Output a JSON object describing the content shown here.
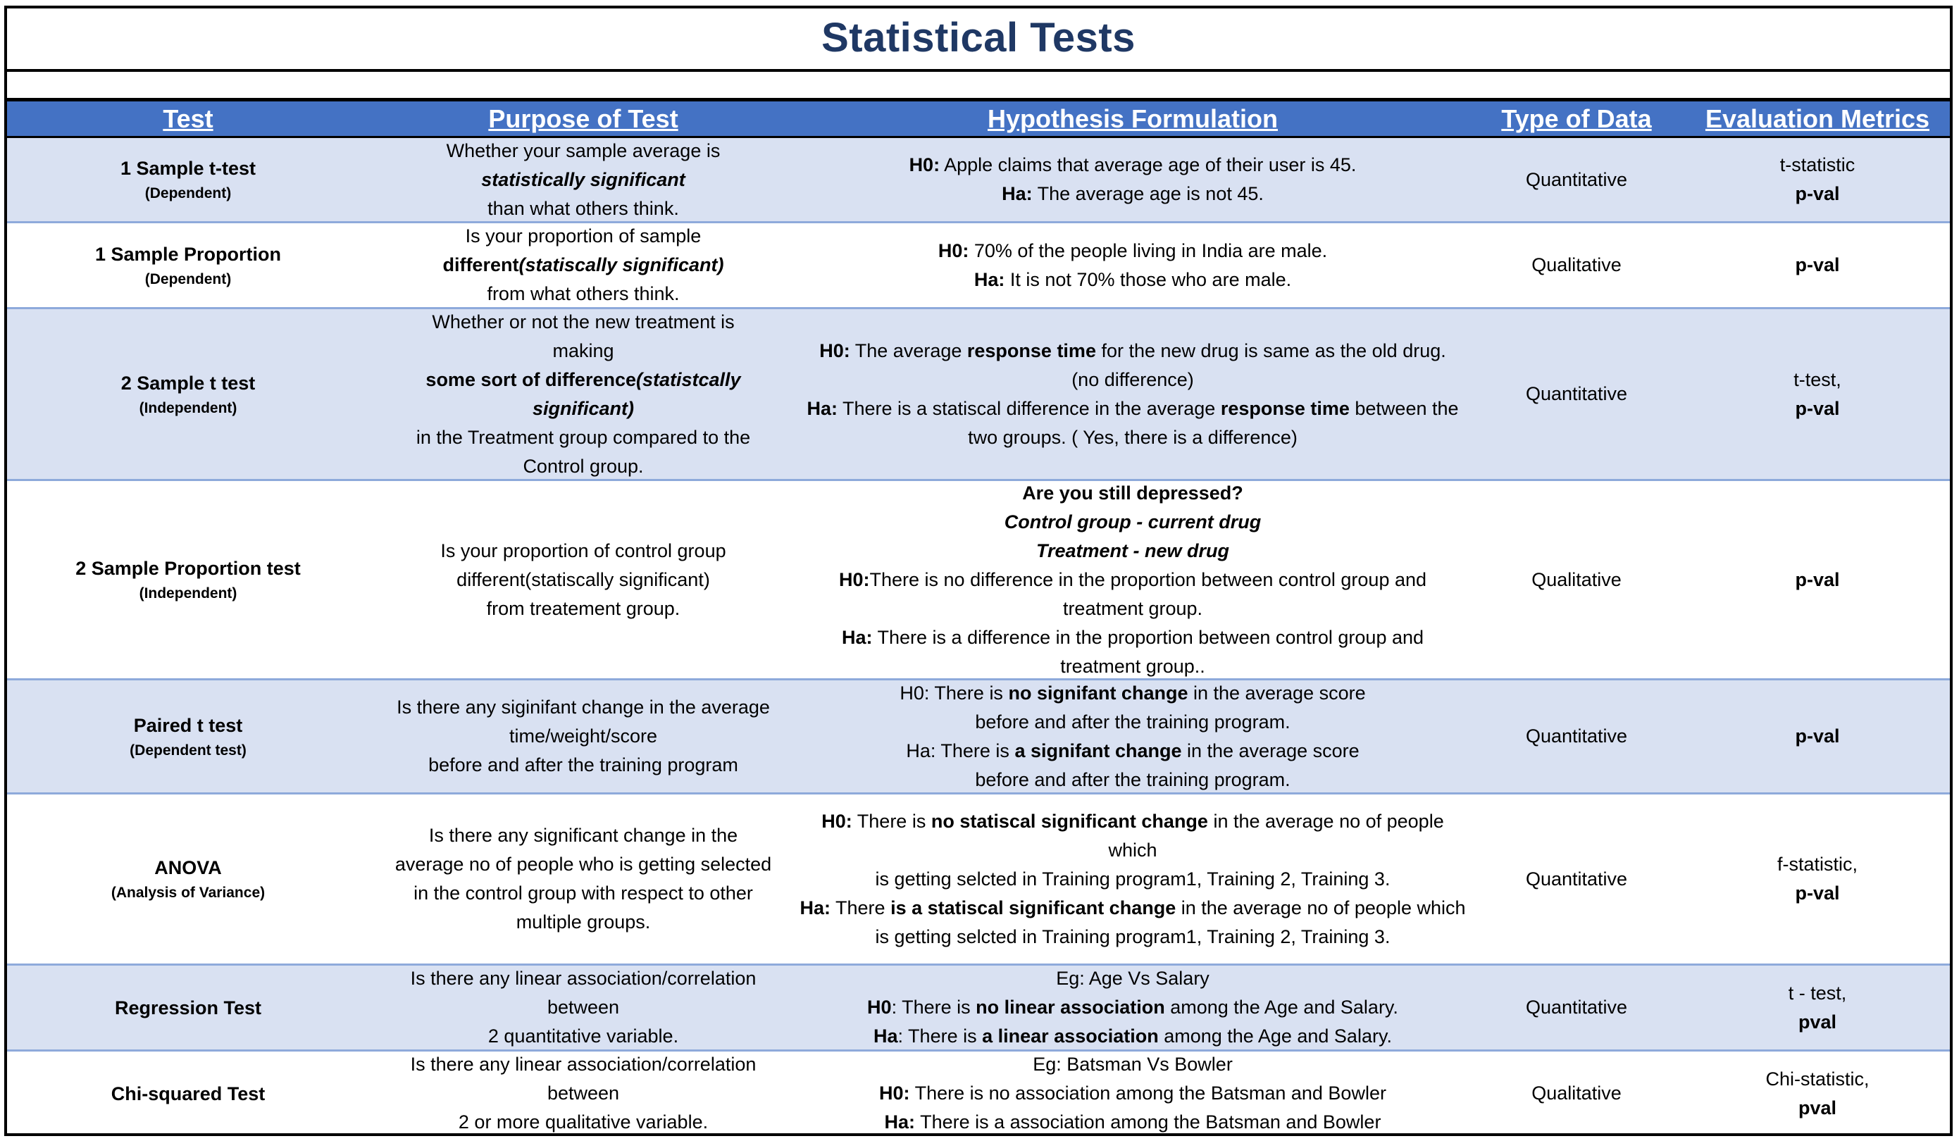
{
  "title": "Statistical Tests",
  "headers": {
    "test": "Test",
    "purpose": "Purpose of Test",
    "hypothesis": "Hypothesis Formulation",
    "type": "Type of Data",
    "metrics": "Evaluation Metrics"
  },
  "rows": [
    {
      "name": "1 Sample t-test",
      "sub": "(Dependent)",
      "purpose": [
        [
          {
            "t": "Whether your sample average is"
          }
        ],
        [
          {
            "t": "statistically significant",
            "s": "bi"
          }
        ],
        [
          {
            "t": "than what others think."
          }
        ]
      ],
      "hypothesis": [
        [
          {
            "t": "H0:",
            "s": "b"
          },
          {
            "t": " Apple claims that average age of their user is 45."
          }
        ],
        [
          {
            "t": "Ha:",
            "s": "b"
          },
          {
            "t": "  The average age is not 45."
          }
        ]
      ],
      "type": "Quantitative",
      "metrics": [
        [
          {
            "t": "t-statistic"
          }
        ],
        [
          {
            "t": "p-val",
            "s": "b"
          }
        ]
      ]
    },
    {
      "name": "1 Sample Proportion",
      "sub": "(Dependent)",
      "purpose": [
        [
          {
            "t": "Is your proportion of sample"
          }
        ],
        [
          {
            "t": "different",
            "s": "b"
          },
          {
            "t": "(statiscally significant)",
            "s": "bi"
          }
        ],
        [
          {
            "t": "from what others think."
          }
        ]
      ],
      "hypothesis": [
        [
          {
            "t": "H0:",
            "s": "b"
          },
          {
            "t": " 70% of the people living in India are male."
          }
        ],
        [
          {
            "t": "Ha:",
            "s": "b"
          },
          {
            "t": "  It is not 70% those who are male."
          }
        ]
      ],
      "type": "Qualitative",
      "metrics": [
        [
          {
            "t": "p-val",
            "s": "b"
          }
        ]
      ]
    },
    {
      "name": "2 Sample t test",
      "sub": "(Independent)",
      "purpose": [
        [
          {
            "t": "Whether or not the new treatment is"
          }
        ],
        [
          {
            "t": "making"
          }
        ],
        [
          {
            "t": "some sort of difference",
            "s": "b"
          },
          {
            "t": "(statistcally",
            "s": "bi"
          }
        ],
        [
          {
            "t": "significant)",
            "s": "bi"
          }
        ],
        [
          {
            "t": "in the Treatment group compared to the"
          }
        ],
        [
          {
            "t": "Control group."
          }
        ]
      ],
      "hypothesis": [
        [
          {
            "t": "H0:",
            "s": "b"
          },
          {
            "t": " The average "
          },
          {
            "t": "response time",
            "s": "b"
          },
          {
            "t": " for the new drug is same as the old drug."
          }
        ],
        [
          {
            "t": "(no difference)"
          }
        ],
        [
          {
            "t": "Ha:",
            "s": "b"
          },
          {
            "t": " There is a statiscal difference in the average "
          },
          {
            "t": "response time",
            "s": "b"
          },
          {
            "t": " between the"
          }
        ],
        [
          {
            "t": "two groups. ( Yes, there is a difference)"
          }
        ]
      ],
      "type": "Quantitative",
      "metrics": [
        [
          {
            "t": "t-test,"
          }
        ],
        [
          {
            "t": "p-val",
            "s": "b"
          }
        ]
      ]
    },
    {
      "name": "2 Sample Proportion test",
      "sub": "(Independent)",
      "purpose": [
        [
          {
            "t": "Is your proportion of control group"
          }
        ],
        [
          {
            "t": "different(statiscally significant)"
          }
        ],
        [
          {
            "t": "from treatement group."
          }
        ]
      ],
      "hypothesis": [
        [
          {
            "t": "Are you still depressed?",
            "s": "b"
          }
        ],
        [
          {
            "t": "Control group - current drug",
            "s": "bi"
          }
        ],
        [
          {
            "t": "Treatment - new drug",
            "s": "bi"
          }
        ],
        [
          {
            "t": "H0:",
            "s": "b"
          },
          {
            "t": "There is no difference in the proportion between control group and"
          }
        ],
        [
          {
            "t": "treatment group."
          }
        ],
        [
          {
            "t": "Ha:",
            "s": "b"
          },
          {
            "t": " There is a difference in the proportion between control group and"
          }
        ],
        [
          {
            "t": "treatment group.."
          }
        ]
      ],
      "type": "Qualitative",
      "metrics": [
        [
          {
            "t": "p-val",
            "s": "b"
          }
        ]
      ]
    },
    {
      "name": "Paired t test",
      "sub": "(Dependent test)",
      "purpose": [
        [
          {
            "t": "Is there any siginifant change in the average"
          }
        ],
        [
          {
            "t": "time/weight/score"
          }
        ],
        [
          {
            "t": "before and after the training program"
          }
        ]
      ],
      "hypothesis": [
        [
          {
            "t": "H0: There is "
          },
          {
            "t": "no signifant change",
            "s": "b"
          },
          {
            "t": " in the average score"
          }
        ],
        [
          {
            "t": "before and after the training program."
          }
        ],
        [
          {
            "t": "Ha: There is "
          },
          {
            "t": "a signifant change",
            "s": "b"
          },
          {
            "t": " in the average score"
          }
        ],
        [
          {
            "t": "before and after the training program."
          }
        ]
      ],
      "type": "Quantitative",
      "metrics": [
        [
          {
            "t": "p-val",
            "s": "b"
          }
        ]
      ]
    },
    {
      "name": "ANOVA",
      "sub": "(Analysis of Variance)",
      "purpose": [
        [
          {
            "t": "Is there any significant change in the"
          }
        ],
        [
          {
            "t": "average no of people who is getting selected"
          }
        ],
        [
          {
            "t": "in the control group with respect to other"
          }
        ],
        [
          {
            "t": "multiple groups."
          }
        ]
      ],
      "hypothesis": [
        [
          {
            "t": "H0:",
            "s": "b"
          },
          {
            "t": " There is "
          },
          {
            "t": "no statiscal significant change",
            "s": "b"
          },
          {
            "t": " in the average no of people"
          }
        ],
        [
          {
            "t": "which"
          }
        ],
        [
          {
            "t": "is getting selcted in Training program1, Training 2, Training 3."
          }
        ],
        [
          {
            "t": "Ha:",
            "s": "b"
          },
          {
            "t": " There "
          },
          {
            "t": "is a statiscal significant change",
            "s": "b"
          },
          {
            "t": " in the average no of people which"
          }
        ],
        [
          {
            "t": "is getting selcted in Training program1, Training 2, Training 3."
          }
        ]
      ],
      "type": "Quantitative",
      "metrics": [
        [
          {
            "t": "f-statistic,"
          }
        ],
        [
          {
            "t": "p-val",
            "s": "b"
          }
        ]
      ]
    },
    {
      "name": "Regression Test",
      "sub": "",
      "purpose": [
        [
          {
            "t": "Is there any linear association/correlation"
          }
        ],
        [
          {
            "t": "between"
          }
        ],
        [
          {
            "t": "2 quantitative variable."
          }
        ]
      ],
      "hypothesis": [
        [
          {
            "t": "Eg: Age Vs Salary"
          }
        ],
        [
          {
            "t": "H0",
            "s": "b"
          },
          {
            "t": ": There is "
          },
          {
            "t": "no linear association",
            "s": "b"
          },
          {
            "t": " among the Age and Salary."
          }
        ],
        [
          {
            "t": "Ha",
            "s": "b"
          },
          {
            "t": ": There is "
          },
          {
            "t": "a linear association",
            "s": "b"
          },
          {
            "t": " among the  Age and Salary."
          }
        ]
      ],
      "type": "Quantitative",
      "metrics": [
        [
          {
            "t": "t - test,"
          }
        ],
        [
          {
            "t": "pval",
            "s": "b"
          }
        ]
      ]
    },
    {
      "name": "Chi-squared Test",
      "sub": "",
      "purpose": [
        [
          {
            "t": "Is there any linear association/correlation"
          }
        ],
        [
          {
            "t": "between"
          }
        ],
        [
          {
            "t": "2 or more qualitative variable."
          }
        ]
      ],
      "hypothesis": [
        [
          {
            "t": "Eg: Batsman Vs Bowler"
          }
        ],
        [
          {
            "t": "H0:",
            "s": "b"
          },
          {
            "t": " There is no association among the Batsman and Bowler"
          }
        ],
        [
          {
            "t": "Ha:",
            "s": "b"
          },
          {
            "t": " There is a association among the Batsman and Bowler"
          }
        ]
      ],
      "type": "Qualitative",
      "metrics": [
        [
          {
            "t": "Chi-statistic,"
          }
        ],
        [
          {
            "t": "pval",
            "s": "b"
          }
        ]
      ]
    }
  ]
}
